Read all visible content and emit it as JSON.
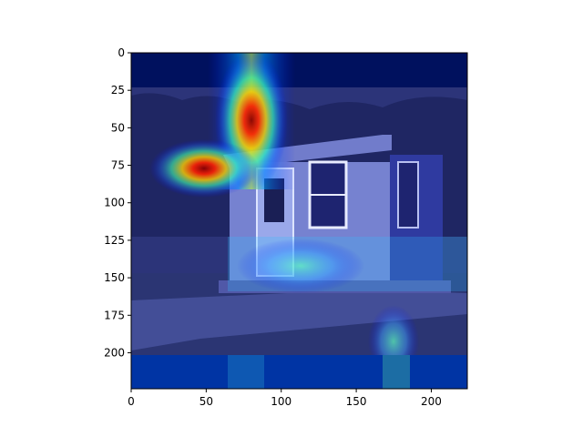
{
  "chart_data": {
    "type": "heatmap",
    "title": "",
    "xlabel": "",
    "ylabel": "",
    "xlim": [
      0,
      224
    ],
    "ylim": [
      224,
      0
    ],
    "x_ticks": [
      0,
      50,
      100,
      150,
      200
    ],
    "y_ticks": [
      0,
      25,
      50,
      75,
      100,
      125,
      150,
      175,
      200
    ],
    "x_tick_labels": [
      "0",
      "50",
      "100",
      "150",
      "200"
    ],
    "y_tick_labels": [
      "0",
      "25",
      "50",
      "75",
      "100",
      "125",
      "150",
      "175",
      "200"
    ],
    "colormap": "jet",
    "background_image": "grayscale photo of a small white portable building / shed with a door and window, trees behind, concrete pad in front",
    "hotspots": [
      {
        "x": 79,
        "y": 45,
        "intensity": 1.0,
        "spread_x": 9,
        "spread_y": 22
      },
      {
        "x": 48,
        "y": 77,
        "intensity": 0.95,
        "spread_x": 18,
        "spread_y": 8
      },
      {
        "x": 80,
        "y": 5,
        "intensity": 0.55,
        "spread_x": 9,
        "spread_y": 14
      },
      {
        "x": 110,
        "y": 140,
        "intensity": 0.45,
        "spread_x": 40,
        "spread_y": 20
      },
      {
        "x": 175,
        "y": 190,
        "intensity": 0.35,
        "spread_x": 15,
        "spread_y": 20
      }
    ]
  },
  "colors": {
    "axis": "#000000",
    "cold": "#00007f",
    "hot": "#7f0000"
  }
}
